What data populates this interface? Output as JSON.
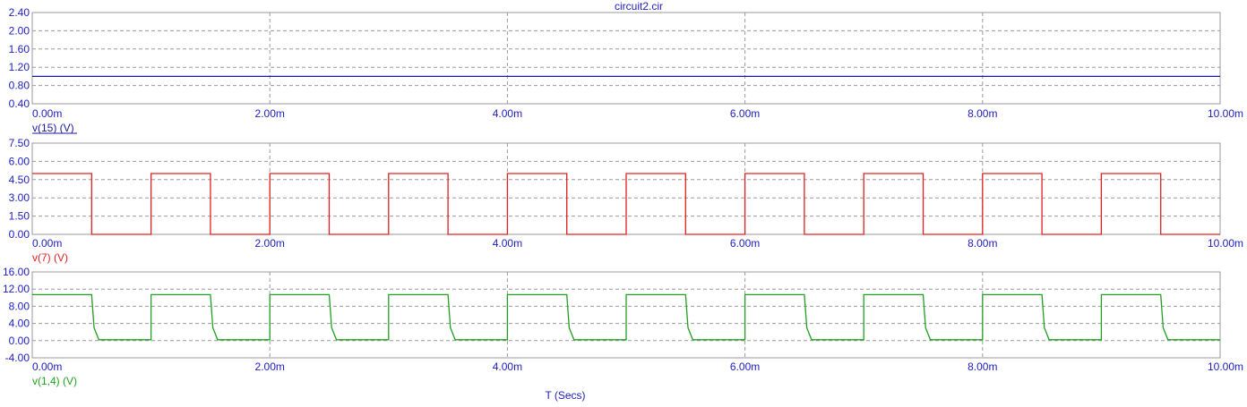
{
  "chart_data": {
    "title": "circuit2.cir",
    "xlabel": "T (Secs)",
    "x_ticks": [
      "0.00m",
      "2.00m",
      "4.00m",
      "6.00m",
      "8.00m",
      "10.00m"
    ],
    "x_range_ms": [
      0,
      10
    ],
    "colors": {
      "axis": "#2020c0",
      "grid": "#9a9a9a"
    },
    "panels": [
      {
        "type": "line",
        "series_label": "v(15) (V)",
        "color": "#1a1aa0",
        "ylim": [
          0.4,
          2.4
        ],
        "y_ticks": [
          "2.40",
          "2.00",
          "1.60",
          "1.20",
          "0.80",
          "0.40"
        ],
        "y_tick_values": [
          2.4,
          2.0,
          1.6,
          1.2,
          0.8,
          0.4
        ],
        "points": [
          [
            0,
            1.0
          ],
          [
            10,
            1.0
          ]
        ]
      },
      {
        "type": "line",
        "series_label": "v(7) (V)",
        "color": "#e02020",
        "ylim": [
          0,
          7.5
        ],
        "y_ticks": [
          "7.50",
          "6.00",
          "4.50",
          "3.00",
          "1.50",
          "0.00"
        ],
        "y_tick_values": [
          7.5,
          6.0,
          4.5,
          3.0,
          1.5,
          0.0
        ],
        "points": [
          [
            0,
            5
          ],
          [
            0.5,
            5
          ],
          [
            0.5,
            0
          ],
          [
            1,
            0
          ],
          [
            1,
            5
          ],
          [
            1.5,
            5
          ],
          [
            1.5,
            0
          ],
          [
            2,
            0
          ],
          [
            2,
            5
          ],
          [
            2.5,
            5
          ],
          [
            2.5,
            0
          ],
          [
            3,
            0
          ],
          [
            3,
            5
          ],
          [
            3.5,
            5
          ],
          [
            3.5,
            0
          ],
          [
            4,
            0
          ],
          [
            4,
            5
          ],
          [
            4.5,
            5
          ],
          [
            4.5,
            0
          ],
          [
            5,
            0
          ],
          [
            5,
            5
          ],
          [
            5.5,
            5
          ],
          [
            5.5,
            0
          ],
          [
            6,
            0
          ],
          [
            6,
            5
          ],
          [
            6.5,
            5
          ],
          [
            6.5,
            0
          ],
          [
            7,
            0
          ],
          [
            7,
            5
          ],
          [
            7.5,
            5
          ],
          [
            7.5,
            0
          ],
          [
            8,
            0
          ],
          [
            8,
            5
          ],
          [
            8.5,
            5
          ],
          [
            8.5,
            0
          ],
          [
            9,
            0
          ],
          [
            9,
            5
          ],
          [
            9.5,
            5
          ],
          [
            9.5,
            0
          ],
          [
            10,
            0
          ]
        ]
      },
      {
        "type": "line",
        "series_label": "v(1,4) (V)",
        "color": "#20a020",
        "ylim": [
          -4,
          16
        ],
        "y_ticks": [
          "16.00",
          "12.00",
          "8.00",
          "4.00",
          "0.00",
          "-4.00"
        ],
        "y_tick_values": [
          16,
          12,
          8,
          4,
          0,
          -4
        ],
        "points": [
          [
            0,
            10.7
          ],
          [
            0.5,
            10.7
          ],
          [
            0.5,
            10.7
          ],
          [
            0.52,
            3
          ],
          [
            0.56,
            0.2
          ],
          [
            1,
            0.2
          ],
          [
            1,
            10.7
          ],
          [
            1.5,
            10.7
          ],
          [
            1.52,
            3
          ],
          [
            1.56,
            0.2
          ],
          [
            2,
            0.2
          ],
          [
            2,
            10.7
          ],
          [
            2.5,
            10.7
          ],
          [
            2.52,
            3
          ],
          [
            2.56,
            0.2
          ],
          [
            3,
            0.2
          ],
          [
            3,
            10.7
          ],
          [
            3.5,
            10.7
          ],
          [
            3.52,
            3
          ],
          [
            3.56,
            0.2
          ],
          [
            4,
            0.2
          ],
          [
            4,
            10.7
          ],
          [
            4.5,
            10.7
          ],
          [
            4.52,
            3
          ],
          [
            4.56,
            0.2
          ],
          [
            5,
            0.2
          ],
          [
            5,
            10.7
          ],
          [
            5.5,
            10.7
          ],
          [
            5.52,
            3
          ],
          [
            5.56,
            0.2
          ],
          [
            6,
            0.2
          ],
          [
            6,
            10.7
          ],
          [
            6.5,
            10.7
          ],
          [
            6.52,
            3
          ],
          [
            6.56,
            0.2
          ],
          [
            7,
            0.2
          ],
          [
            7,
            10.7
          ],
          [
            7.5,
            10.7
          ],
          [
            7.52,
            3
          ],
          [
            7.56,
            0.2
          ],
          [
            8,
            0.2
          ],
          [
            8,
            10.7
          ],
          [
            8.5,
            10.7
          ],
          [
            8.52,
            3
          ],
          [
            8.56,
            0.2
          ],
          [
            9,
            0.2
          ],
          [
            9,
            10.7
          ],
          [
            9.5,
            10.7
          ],
          [
            9.52,
            3
          ],
          [
            9.56,
            0.2
          ],
          [
            10,
            0.2
          ]
        ]
      }
    ]
  }
}
